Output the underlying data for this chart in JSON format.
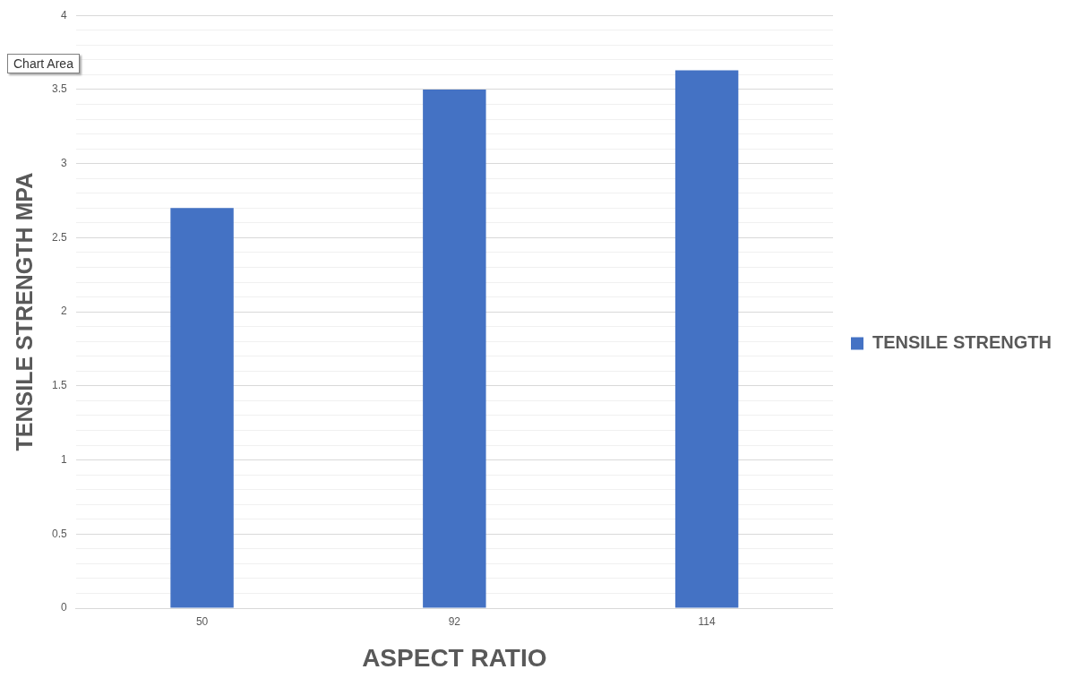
{
  "chart_data": {
    "type": "bar",
    "xlabel": "ASPECT RATIO",
    "ylabel": "TENSILE STRENGTH MPA",
    "categories": [
      "50",
      "92",
      "114"
    ],
    "series": [
      {
        "name": "TENSILE STRENGTH",
        "color": "#4472c4",
        "values": [
          2.7,
          3.5,
          3.63
        ]
      }
    ],
    "ylim": [
      0,
      4
    ],
    "yticks": [
      0,
      {
        "value": 0.1,
        "label": null
      },
      {
        "value": 0.2,
        "label": null
      },
      {
        "value": 0.3,
        "label": null
      },
      {
        "value": 0.4,
        "label": null
      },
      0.5,
      {
        "value": 0.6,
        "label": null
      },
      {
        "value": 0.7,
        "label": null
      },
      {
        "value": 0.8,
        "label": null
      },
      {
        "value": 0.9,
        "label": null
      },
      1,
      {
        "value": 1.1,
        "label": null
      },
      {
        "value": 1.2,
        "label": null
      },
      {
        "value": 1.3,
        "label": null
      },
      {
        "value": 1.4,
        "label": null
      },
      1.5,
      {
        "value": 1.6,
        "label": null
      },
      {
        "value": 1.7,
        "label": null
      },
      {
        "value": 1.8,
        "label": null
      },
      {
        "value": 1.9,
        "label": null
      },
      2,
      {
        "value": 2.1,
        "label": null
      },
      {
        "value": 2.2,
        "label": null
      },
      {
        "value": 2.3,
        "label": null
      },
      {
        "value": 2.4,
        "label": null
      },
      2.5,
      {
        "value": 2.6,
        "label": null
      },
      {
        "value": 2.7,
        "label": null
      },
      {
        "value": 2.8,
        "label": null
      },
      {
        "value": 2.9,
        "label": null
      },
      3,
      {
        "value": 3.1,
        "label": null
      },
      {
        "value": 3.2,
        "label": null
      },
      {
        "value": 3.3,
        "label": null
      },
      {
        "value": 3.4,
        "label": null
      },
      3.5,
      {
        "value": 3.6,
        "label": null
      },
      {
        "value": 3.7,
        "label": null
      },
      {
        "value": 3.8,
        "label": null
      },
      {
        "value": 3.9,
        "label": null
      },
      4
    ],
    "grid": "y",
    "legend": "right",
    "annotations": [
      "Chart Area"
    ]
  }
}
